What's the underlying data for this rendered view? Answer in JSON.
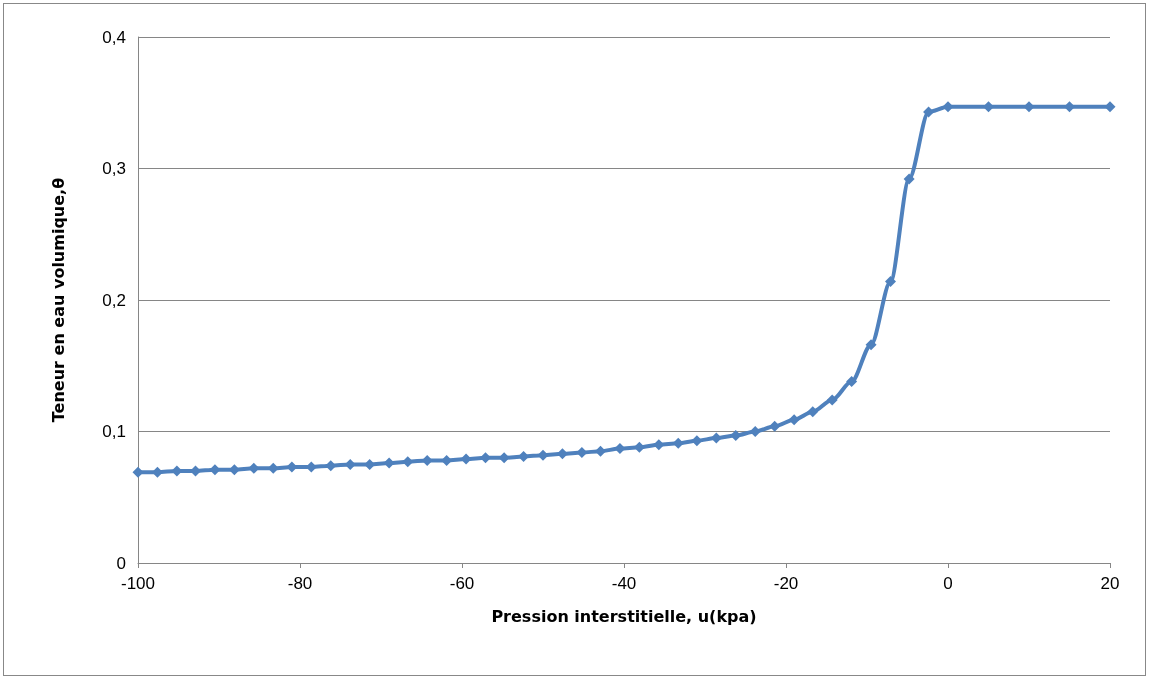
{
  "chart_data": {
    "type": "line",
    "xlabel": "Pression interstitielle, u(kpa)",
    "ylabel": "Teneur en eau volumique,θ",
    "x": [
      -100,
      -97.6,
      -95.2,
      -92.9,
      -90.5,
      -88.1,
      -85.7,
      -83.3,
      -81.0,
      -78.6,
      -76.2,
      -73.8,
      -71.4,
      -69.0,
      -66.7,
      -64.3,
      -61.9,
      -59.5,
      -57.1,
      -54.8,
      -52.4,
      -50.0,
      -47.6,
      -45.2,
      -42.9,
      -40.5,
      -38.1,
      -35.7,
      -33.3,
      -31.0,
      -28.6,
      -26.2,
      -23.8,
      -21.4,
      -19.0,
      -16.7,
      -14.3,
      -11.9,
      -9.5,
      -7.1,
      -4.8,
      -2.4,
      0,
      5,
      10,
      15,
      20
    ],
    "series": [
      {
        "color": "#4f81bd",
        "values": [
          0.069,
          0.069,
          0.07,
          0.07,
          0.071,
          0.071,
          0.072,
          0.072,
          0.073,
          0.073,
          0.074,
          0.075,
          0.075,
          0.076,
          0.077,
          0.078,
          0.078,
          0.079,
          0.08,
          0.08,
          0.081,
          0.082,
          0.083,
          0.084,
          0.085,
          0.087,
          0.088,
          0.09,
          0.091,
          0.093,
          0.095,
          0.097,
          0.1,
          0.104,
          0.109,
          0.115,
          0.124,
          0.138,
          0.166,
          0.214,
          0.292,
          0.343,
          0.347,
          0.347,
          0.347,
          0.347,
          0.347
        ]
      }
    ],
    "xlim": [
      -100,
      20
    ],
    "xticks": [
      -100,
      -80,
      -60,
      -40,
      -20,
      0,
      20
    ],
    "ylim": [
      0,
      0.4
    ],
    "yticks": [
      0,
      {
        "value": 0.1,
        "label": "0,1"
      },
      {
        "value": 0.2,
        "label": "0,2"
      },
      {
        "value": 0.3,
        "label": "0,3"
      },
      {
        "value": 0.4,
        "label": "0,4"
      }
    ],
    "grid": "y",
    "marker": "diamond",
    "line_style": "solid"
  }
}
